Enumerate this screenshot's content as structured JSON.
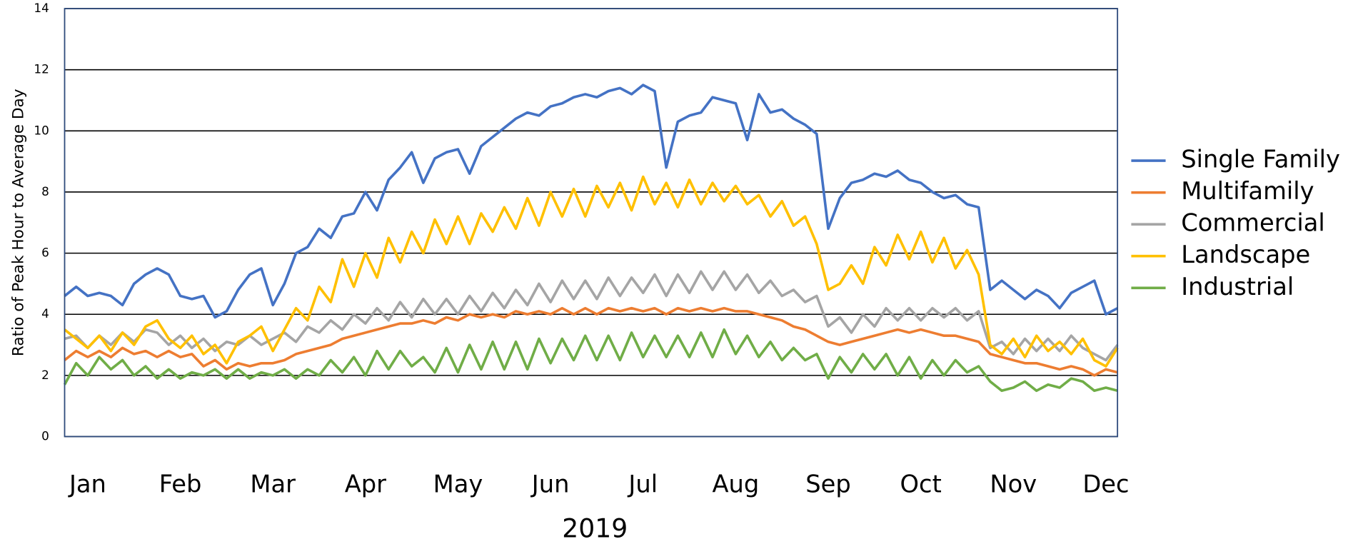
{
  "chart_data": {
    "type": "line",
    "y_label": "Ratio of Peak Hour to Average Day",
    "x_label": "2019",
    "categories": [
      null,
      null,
      "Jan",
      null,
      null,
      null,
      null,
      null,
      null,
      null,
      "Feb",
      null,
      null,
      null,
      null,
      null,
      null,
      null,
      "Mar",
      null,
      null,
      null,
      null,
      null,
      null,
      null,
      "Apr",
      null,
      null,
      null,
      null,
      null,
      null,
      null,
      "May",
      null,
      null,
      null,
      null,
      null,
      null,
      null,
      "Jun",
      null,
      null,
      null,
      null,
      null,
      null,
      null,
      "Jul",
      null,
      null,
      null,
      null,
      null,
      null,
      null,
      "Aug",
      null,
      null,
      null,
      null,
      null,
      null,
      null,
      "Sep",
      null,
      null,
      null,
      null,
      null,
      null,
      null,
      "Oct",
      null,
      null,
      null,
      null,
      null,
      null,
      null,
      "Nov",
      null,
      null,
      null,
      null,
      null,
      null,
      null,
      "Dec",
      null
    ],
    "series": [
      {
        "name": "Single Family",
        "color": "#4472c4",
        "values": [
          4.6,
          4.9,
          4.6,
          4.7,
          4.6,
          4.3,
          5.0,
          5.3,
          5.5,
          5.3,
          4.6,
          4.5,
          4.6,
          3.9,
          4.1,
          4.8,
          5.3,
          5.5,
          4.3,
          5.0,
          6.0,
          6.2,
          6.8,
          6.5,
          7.2,
          7.3,
          8.0,
          7.4,
          8.4,
          8.8,
          9.3,
          8.3,
          9.1,
          9.3,
          9.4,
          8.6,
          9.5,
          9.8,
          10.1,
          10.4,
          10.6,
          10.5,
          10.8,
          10.9,
          11.1,
          11.2,
          11.1,
          11.3,
          11.4,
          11.2,
          11.5,
          11.3,
          8.8,
          10.3,
          10.5,
          10.6,
          11.1,
          11.0,
          10.9,
          9.7,
          11.2,
          10.6,
          10.7,
          10.4,
          10.2,
          9.9,
          6.8,
          7.8,
          8.3,
          8.4,
          8.6,
          8.5,
          8.7,
          8.4,
          8.3,
          8.0,
          7.8,
          7.9,
          7.6,
          7.5,
          4.8,
          5.1,
          4.8,
          4.5,
          4.8,
          4.6,
          4.2,
          4.7,
          4.9,
          5.1,
          4.0,
          4.2
        ]
      },
      {
        "name": "Multifamily",
        "color": "#ed7d31",
        "values": [
          2.5,
          2.8,
          2.6,
          2.8,
          2.6,
          2.9,
          2.7,
          2.8,
          2.6,
          2.8,
          2.6,
          2.7,
          2.3,
          2.5,
          2.2,
          2.4,
          2.3,
          2.4,
          2.4,
          2.5,
          2.7,
          2.8,
          2.9,
          3.0,
          3.2,
          3.3,
          3.4,
          3.5,
          3.6,
          3.7,
          3.7,
          3.8,
          3.7,
          3.9,
          3.8,
          4.0,
          3.9,
          4.0,
          3.9,
          4.1,
          4.0,
          4.1,
          4.0,
          4.2,
          4.0,
          4.2,
          4.0,
          4.2,
          4.1,
          4.2,
          4.1,
          4.2,
          4.0,
          4.2,
          4.1,
          4.2,
          4.1,
          4.2,
          4.1,
          4.1,
          4.0,
          3.9,
          3.8,
          3.6,
          3.5,
          3.3,
          3.1,
          3.0,
          3.1,
          3.2,
          3.3,
          3.4,
          3.5,
          3.4,
          3.5,
          3.4,
          3.3,
          3.3,
          3.2,
          3.1,
          2.7,
          2.6,
          2.5,
          2.4,
          2.4,
          2.3,
          2.2,
          2.3,
          2.2,
          2.0,
          2.2,
          2.1
        ]
      },
      {
        "name": "Commercial",
        "color": "#a5a5a5",
        "values": [
          3.2,
          3.3,
          2.9,
          3.3,
          3.0,
          3.4,
          3.1,
          3.5,
          3.4,
          3.0,
          3.3,
          2.9,
          3.2,
          2.8,
          3.1,
          3.0,
          3.3,
          3.0,
          3.2,
          3.4,
          3.1,
          3.6,
          3.4,
          3.8,
          3.5,
          4.0,
          3.7,
          4.2,
          3.8,
          4.4,
          3.9,
          4.5,
          4.0,
          4.5,
          4.0,
          4.6,
          4.1,
          4.7,
          4.2,
          4.8,
          4.3,
          5.0,
          4.4,
          5.1,
          4.5,
          5.1,
          4.5,
          5.2,
          4.6,
          5.2,
          4.7,
          5.3,
          4.6,
          5.3,
          4.7,
          5.4,
          4.8,
          5.4,
          4.8,
          5.3,
          4.7,
          5.1,
          4.6,
          4.8,
          4.4,
          4.6,
          3.6,
          3.9,
          3.4,
          4.0,
          3.6,
          4.2,
          3.8,
          4.2,
          3.8,
          4.2,
          3.9,
          4.2,
          3.8,
          4.1,
          2.9,
          3.1,
          2.7,
          3.2,
          2.8,
          3.2,
          2.8,
          3.3,
          2.9,
          2.7,
          2.5,
          3.0
        ]
      },
      {
        "name": "Landscape",
        "color": "#ffc000",
        "values": [
          3.5,
          3.2,
          2.9,
          3.3,
          2.8,
          3.4,
          3.0,
          3.6,
          3.8,
          3.2,
          2.9,
          3.3,
          2.7,
          3.0,
          2.4,
          3.1,
          3.3,
          3.6,
          2.8,
          3.5,
          4.2,
          3.8,
          4.9,
          4.4,
          5.8,
          4.9,
          6.0,
          5.2,
          6.5,
          5.7,
          6.7,
          6.0,
          7.1,
          6.3,
          7.2,
          6.3,
          7.3,
          6.7,
          7.5,
          6.8,
          7.8,
          6.9,
          8.0,
          7.2,
          8.1,
          7.2,
          8.2,
          7.5,
          8.3,
          7.4,
          8.5,
          7.6,
          8.3,
          7.5,
          8.4,
          7.6,
          8.3,
          7.7,
          8.2,
          7.6,
          7.9,
          7.2,
          7.7,
          6.9,
          7.2,
          6.3,
          4.8,
          5.0,
          5.6,
          5.0,
          6.2,
          5.6,
          6.6,
          5.8,
          6.7,
          5.7,
          6.5,
          5.5,
          6.1,
          5.3,
          3.0,
          2.7,
          3.2,
          2.6,
          3.3,
          2.8,
          3.1,
          2.7,
          3.2,
          2.5,
          2.3,
          2.9
        ]
      },
      {
        "name": "Industrial",
        "color": "#70ad47",
        "values": [
          1.7,
          2.4,
          2.0,
          2.6,
          2.2,
          2.5,
          2.0,
          2.3,
          1.9,
          2.2,
          1.9,
          2.1,
          2.0,
          2.2,
          1.9,
          2.2,
          1.9,
          2.1,
          2.0,
          2.2,
          1.9,
          2.2,
          2.0,
          2.5,
          2.1,
          2.6,
          2.0,
          2.8,
          2.2,
          2.8,
          2.3,
          2.6,
          2.1,
          2.9,
          2.1,
          3.0,
          2.2,
          3.1,
          2.2,
          3.1,
          2.2,
          3.2,
          2.4,
          3.2,
          2.5,
          3.3,
          2.5,
          3.3,
          2.5,
          3.4,
          2.6,
          3.3,
          2.6,
          3.3,
          2.6,
          3.4,
          2.6,
          3.5,
          2.7,
          3.3,
          2.6,
          3.1,
          2.5,
          2.9,
          2.5,
          2.7,
          1.9,
          2.6,
          2.1,
          2.7,
          2.2,
          2.7,
          2.0,
          2.6,
          1.9,
          2.5,
          2.0,
          2.5,
          2.1,
          2.3,
          1.8,
          1.5,
          1.6,
          1.8,
          1.5,
          1.7,
          1.6,
          1.9,
          1.8,
          1.5,
          1.6,
          1.5
        ]
      }
    ],
    "ylim": [
      0,
      14
    ],
    "yticks": [
      0,
      2,
      4,
      6,
      8,
      10,
      12,
      14
    ],
    "grid": true,
    "legend": "right"
  }
}
